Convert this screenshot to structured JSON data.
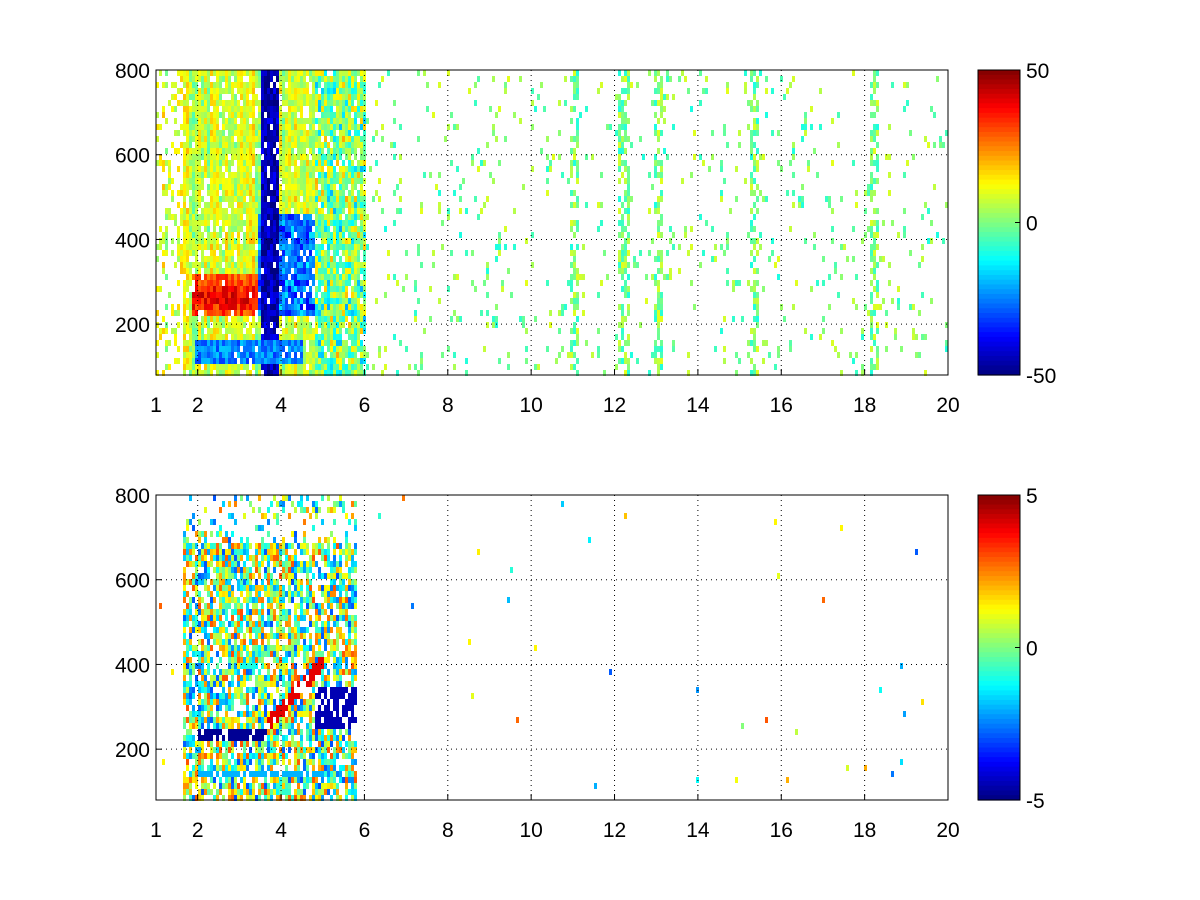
{
  "chart_data": [
    {
      "type": "heatmap",
      "title": "",
      "xlabel": "",
      "ylabel": "",
      "xlim": [
        1,
        20
      ],
      "ylim": [
        80,
        800
      ],
      "xticks": [
        "1",
        "2",
        "4",
        "6",
        "8",
        "10",
        "12",
        "14",
        "16",
        "18",
        "20"
      ],
      "yticks": [
        "200",
        "400",
        "600",
        "800"
      ],
      "grid": true,
      "colormap": "jet",
      "colorbar": {
        "min": -50,
        "max": 50,
        "ticks": [
          "-50",
          "0",
          "50"
        ]
      },
      "features": [
        {
          "x": [
            1.8,
            4.2
          ],
          "y": [
            230,
            320
          ],
          "value": 45,
          "note": ""
        },
        {
          "x": [
            3.5,
            4.8
          ],
          "y": [
            250,
            450
          ],
          "value": -40,
          "note": ""
        },
        {
          "x": [
            1.9,
            4.0
          ],
          "y": [
            120,
            160
          ],
          "value": -25,
          "note": ""
        },
        {
          "x": [
            6.0,
            20.0
          ],
          "y": [
            80,
            800
          ],
          "value": 0,
          "note": ""
        }
      ]
    },
    {
      "type": "heatmap",
      "title": "",
      "xlabel": "",
      "ylabel": "",
      "xlim": [
        1,
        20
      ],
      "ylim": [
        80,
        800
      ],
      "xticks": [
        "1",
        "2",
        "4",
        "6",
        "8",
        "10",
        "12",
        "14",
        "16",
        "18",
        "20"
      ],
      "yticks": [
        "200",
        "400",
        "600",
        "800"
      ],
      "grid": true,
      "colormap": "jet",
      "colorbar": {
        "min": -5,
        "max": 5,
        "ticks": [
          "-5",
          "0",
          "5"
        ]
      },
      "features": [
        {
          "x": [
            2.0,
            3.6
          ],
          "y": [
            230,
            260
          ],
          "value": -5,
          "note": ""
        },
        {
          "x": [
            3.6,
            5.0
          ],
          "y": [
            260,
            420
          ],
          "value": 4,
          "note": ""
        },
        {
          "x": [
            2.0,
            4.5
          ],
          "y": [
            135,
            160
          ],
          "value": -2,
          "note": ""
        },
        {
          "x": [
            1.5,
            5.8
          ],
          "y": [
            80,
            800
          ],
          "value": 0,
          "note": ""
        }
      ]
    }
  ]
}
